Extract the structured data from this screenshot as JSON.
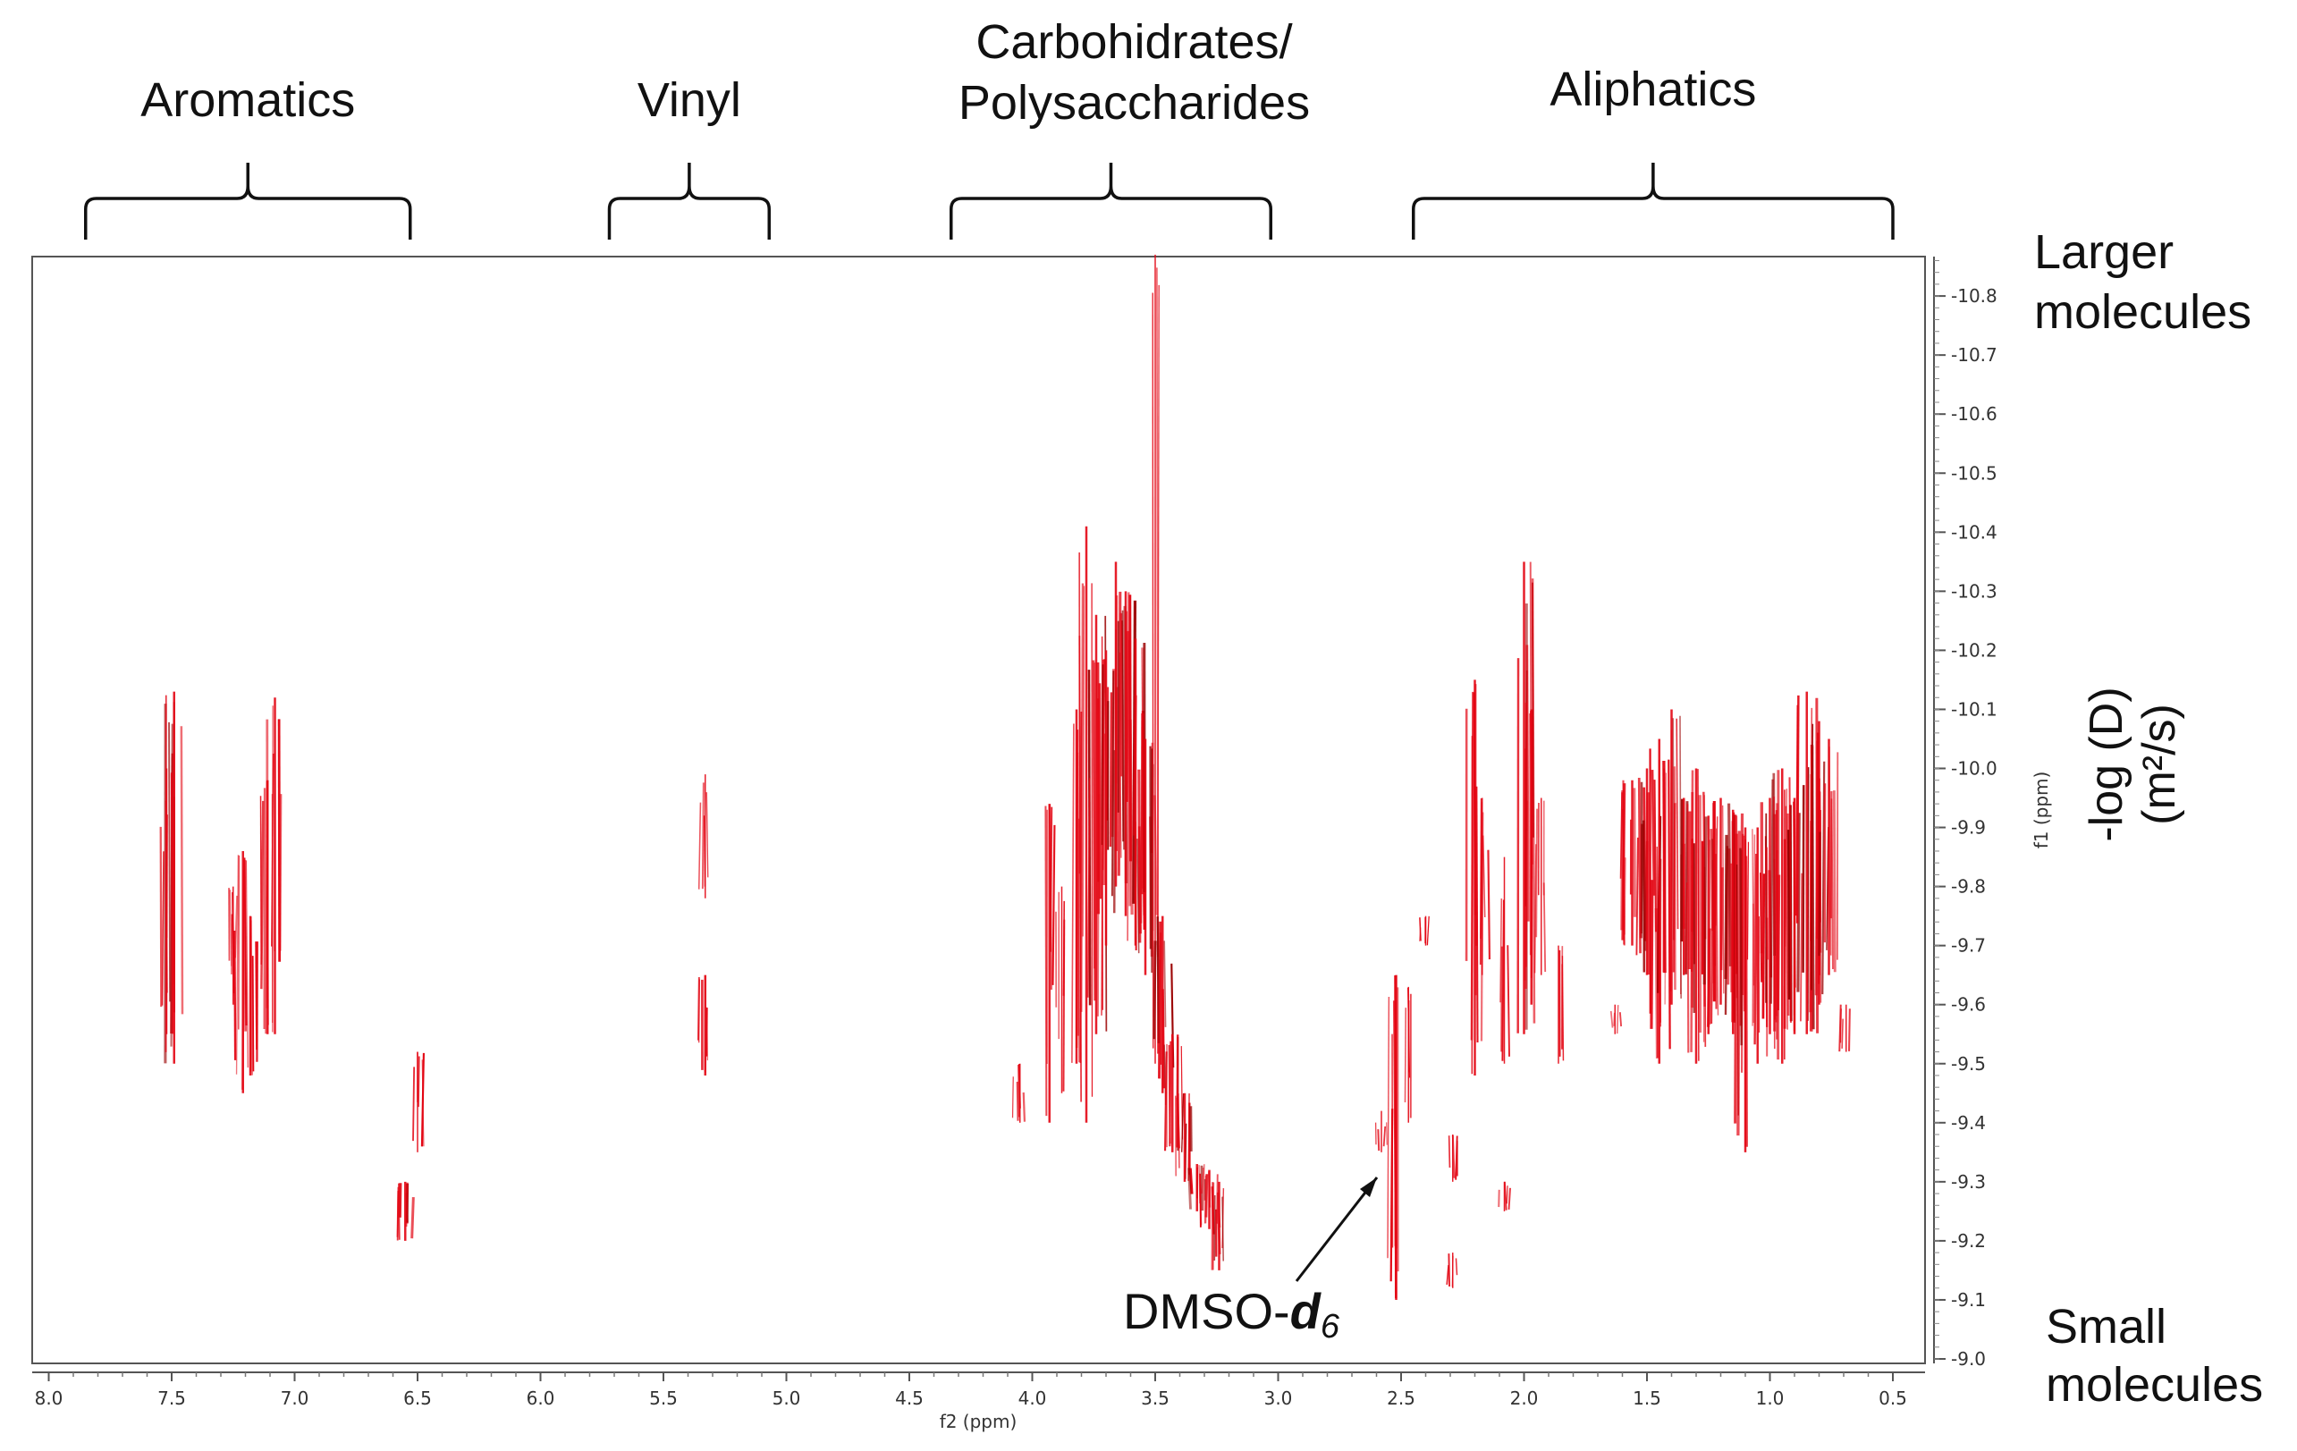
{
  "chart_data": {
    "type": "scatter",
    "subtype": "2D DOSY NMR contour plot",
    "xlabel": "f2 (ppm)",
    "ylabel_small": "f1 (ppm)",
    "ylabel_right": "-log (D)",
    "ylabel_right_units": "(m²/s)",
    "x_range": [
      8.0,
      0.5
    ],
    "x_reversed": true,
    "y_range": [
      -9.0,
      -10.87
    ],
    "x_ticks": [
      "8.0",
      "7.5",
      "7.0",
      "6.5",
      "6.0",
      "5.5",
      "5.0",
      "4.5",
      "4.0",
      "3.5",
      "3.0",
      "2.5",
      "2.0",
      "1.5",
      "1.0",
      "0.5"
    ],
    "y_ticks": [
      "-10.8",
      "-10.7",
      "-10.6",
      "-10.5",
      "-10.4",
      "-10.3",
      "-10.2",
      "-10.1",
      "-10.0",
      "-9.9",
      "-9.8",
      "-9.7",
      "-9.6",
      "-9.5",
      "-9.4",
      "-9.3",
      "-9.2",
      "-9.1",
      "-9.0"
    ],
    "grid": false,
    "peak_color": "#e30613",
    "peak_color_dark": "#9b0000",
    "regions": [
      {
        "label": "Aromatics",
        "from": 7.85,
        "to": 6.53
      },
      {
        "label": "Vinyl",
        "from": 5.72,
        "to": 5.07
      },
      {
        "label": "Carbohidrates/",
        "label2": "Polysaccharides",
        "from": 4.33,
        "to": 3.03
      },
      {
        "label": "Aliphatics",
        "from": 2.45,
        "to": 0.5
      }
    ],
    "side_labels": {
      "top_line1": "Larger",
      "top_line2": "molecules",
      "bottom_line1": "Small",
      "bottom_line2": "molecules"
    },
    "annotation": {
      "text": "DMSO-",
      "subscript": "d6",
      "subscript_main": "d",
      "subscript_small": "6",
      "points_to_ppm": 2.5,
      "points_to_logd": -9.31
    },
    "peaks": [
      {
        "ppm": 7.49,
        "y1": -9.5,
        "y2": -10.13,
        "dense": 0.9
      },
      {
        "ppm": 7.52,
        "y1": -9.55,
        "y2": -10.0,
        "dense": 0.5
      },
      {
        "ppm": 7.21,
        "y1": -9.45,
        "y2": -9.86,
        "dense": 0.8
      },
      {
        "ppm": 7.25,
        "y1": -9.6,
        "y2": -9.8,
        "dense": 0.5
      },
      {
        "ppm": 7.18,
        "y1": -9.48,
        "y2": -9.75,
        "dense": 0.6
      },
      {
        "ppm": 7.11,
        "y1": -9.55,
        "y2": -9.98,
        "dense": 0.6
      },
      {
        "ppm": 7.08,
        "y1": -9.55,
        "y2": -10.12,
        "dense": 0.8
      },
      {
        "ppm": 6.55,
        "y1": -9.2,
        "y2": -9.3,
        "dense": 0.9
      },
      {
        "ppm": 6.5,
        "y1": -9.35,
        "y2": -9.52,
        "dense": 0.5
      },
      {
        "ppm": 5.33,
        "y1": -9.48,
        "y2": -9.65,
        "dense": 0.7
      },
      {
        "ppm": 5.33,
        "y1": -9.78,
        "y2": -9.99,
        "dense": 0.4
      },
      {
        "ppm": 4.05,
        "y1": -9.4,
        "y2": -9.5,
        "dense": 0.5
      },
      {
        "ppm": 3.93,
        "y1": -9.4,
        "y2": -9.94,
        "dense": 0.6
      },
      {
        "ppm": 3.88,
        "y1": -9.45,
        "y2": -9.8,
        "dense": 0.4
      },
      {
        "ppm": 3.82,
        "y1": -9.5,
        "y2": -10.1,
        "dense": 0.6
      },
      {
        "ppm": 3.78,
        "y1": -9.4,
        "y2": -10.41,
        "dense": 0.7
      },
      {
        "ppm": 3.74,
        "y1": -9.55,
        "y2": -10.26,
        "dense": 0.9
      },
      {
        "ppm": 3.7,
        "y1": -9.7,
        "y2": -10.2,
        "dense": 1.0
      },
      {
        "ppm": 3.66,
        "y1": -9.8,
        "y2": -10.35,
        "dense": 1.0
      },
      {
        "ppm": 3.62,
        "y1": -9.75,
        "y2": -10.3,
        "dense": 1.0
      },
      {
        "ppm": 3.58,
        "y1": -9.7,
        "y2": -10.22,
        "dense": 1.0
      },
      {
        "ppm": 3.54,
        "y1": -9.65,
        "y2": -10.05,
        "dense": 1.0
      },
      {
        "ppm": 3.5,
        "y1": -9.5,
        "y2": -10.87,
        "dense": 0.3
      },
      {
        "ppm": 3.47,
        "y1": -9.45,
        "y2": -9.75,
        "dense": 0.9
      },
      {
        "ppm": 3.43,
        "y1": -9.35,
        "y2": -9.55,
        "dense": 0.9
      },
      {
        "ppm": 3.38,
        "y1": -9.3,
        "y2": -9.45,
        "dense": 0.9
      },
      {
        "ppm": 3.33,
        "y1": -9.25,
        "y2": -9.33,
        "dense": 0.9
      },
      {
        "ppm": 3.28,
        "y1": -9.22,
        "y2": -9.32,
        "dense": 0.9
      },
      {
        "ppm": 3.24,
        "y1": -9.15,
        "y2": -9.3,
        "dense": 0.9
      },
      {
        "ppm": 2.52,
        "y1": -9.1,
        "y2": -9.65,
        "dense": 0.8
      },
      {
        "ppm": 2.58,
        "y1": -9.35,
        "y2": -9.42,
        "dense": 0.4
      },
      {
        "ppm": 2.47,
        "y1": -9.4,
        "y2": -9.63,
        "dense": 0.4
      },
      {
        "ppm": 2.4,
        "y1": -9.7,
        "y2": -9.75,
        "dense": 0.4
      },
      {
        "ppm": 2.29,
        "y1": -9.3,
        "y2": -9.38,
        "dense": 0.4
      },
      {
        "ppm": 2.29,
        "y1": -9.12,
        "y2": -9.18,
        "dense": 0.4
      },
      {
        "ppm": 2.2,
        "y1": -9.48,
        "y2": -10.15,
        "dense": 0.8
      },
      {
        "ppm": 2.17,
        "y1": -9.65,
        "y2": -9.95,
        "dense": 0.5
      },
      {
        "ppm": 2.08,
        "y1": -9.5,
        "y2": -9.85,
        "dense": 0.4
      },
      {
        "ppm": 2.08,
        "y1": -9.25,
        "y2": -9.3,
        "dense": 0.4
      },
      {
        "ppm": 2.0,
        "y1": -9.55,
        "y2": -10.35,
        "dense": 0.9
      },
      {
        "ppm": 1.97,
        "y1": -9.6,
        "y2": -10.1,
        "dense": 0.7
      },
      {
        "ppm": 1.93,
        "y1": -9.65,
        "y2": -9.95,
        "dense": 0.5
      },
      {
        "ppm": 1.86,
        "y1": -9.5,
        "y2": -9.7,
        "dense": 0.4
      },
      {
        "ppm": 1.63,
        "y1": -9.55,
        "y2": -9.6,
        "dense": 0.4
      },
      {
        "ppm": 1.56,
        "y1": -9.7,
        "y2": -9.98,
        "dense": 1.0
      },
      {
        "ppm": 1.5,
        "y1": -9.65,
        "y2": -10.0,
        "dense": 1.0
      },
      {
        "ppm": 1.45,
        "y1": -9.5,
        "y2": -10.05,
        "dense": 1.0
      },
      {
        "ppm": 1.4,
        "y1": -9.6,
        "y2": -10.1,
        "dense": 1.0
      },
      {
        "ppm": 1.35,
        "y1": -9.65,
        "y2": -9.95,
        "dense": 1.0
      },
      {
        "ppm": 1.3,
        "y1": -9.5,
        "y2": -10.0,
        "dense": 1.0
      },
      {
        "ppm": 1.25,
        "y1": -9.55,
        "y2": -9.92,
        "dense": 1.0
      },
      {
        "ppm": 1.2,
        "y1": -9.6,
        "y2": -9.95,
        "dense": 1.0
      },
      {
        "ppm": 1.15,
        "y1": -9.55,
        "y2": -9.93,
        "dense": 1.0
      },
      {
        "ppm": 1.1,
        "y1": -9.35,
        "y2": -9.9,
        "dense": 1.0
      },
      {
        "ppm": 1.05,
        "y1": -9.5,
        "y2": -9.9,
        "dense": 1.0
      },
      {
        "ppm": 1.0,
        "y1": -9.55,
        "y2": -9.95,
        "dense": 1.0
      },
      {
        "ppm": 0.95,
        "y1": -9.5,
        "y2": -10.0,
        "dense": 1.0
      },
      {
        "ppm": 0.9,
        "y1": -9.55,
        "y2": -9.95,
        "dense": 1.0
      },
      {
        "ppm": 0.85,
        "y1": -9.55,
        "y2": -10.13,
        "dense": 1.0
      },
      {
        "ppm": 0.8,
        "y1": -9.6,
        "y2": -10.08,
        "dense": 1.0
      },
      {
        "ppm": 0.76,
        "y1": -9.65,
        "y2": -10.05,
        "dense": 1.0
      },
      {
        "ppm": 0.69,
        "y1": -9.52,
        "y2": -9.6,
        "dense": 0.4
      }
    ]
  }
}
